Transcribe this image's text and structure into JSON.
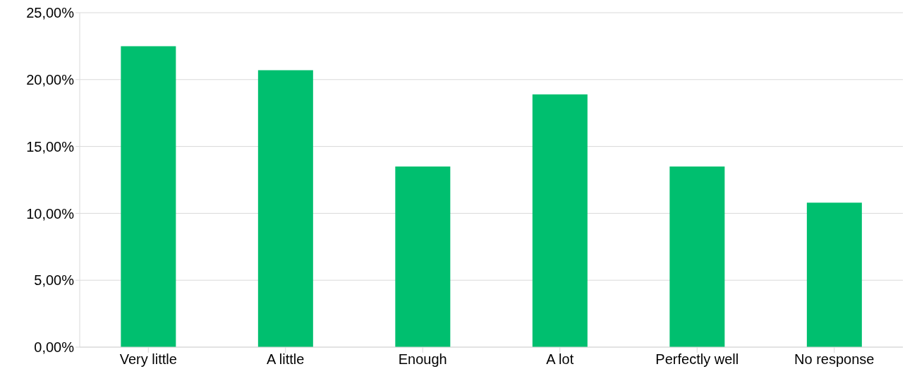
{
  "chart_data": {
    "type": "bar",
    "categories": [
      "Very little",
      "A little",
      "Enough",
      "A lot",
      "Perfectly well",
      "No response"
    ],
    "values": [
      22.5,
      20.7,
      13.5,
      18.9,
      13.5,
      10.8
    ],
    "color": "#00bf6f",
    "ylim": [
      0,
      25
    ],
    "yticks": [
      {
        "value": 0,
        "label": "0,00%"
      },
      {
        "value": 5,
        "label": "5,00%"
      },
      {
        "value": 10,
        "label": "10,00%"
      },
      {
        "value": 15,
        "label": "15,00%"
      },
      {
        "value": 20,
        "label": "20,00%"
      },
      {
        "value": 25,
        "label": "25,00%"
      }
    ],
    "grid": "y"
  }
}
